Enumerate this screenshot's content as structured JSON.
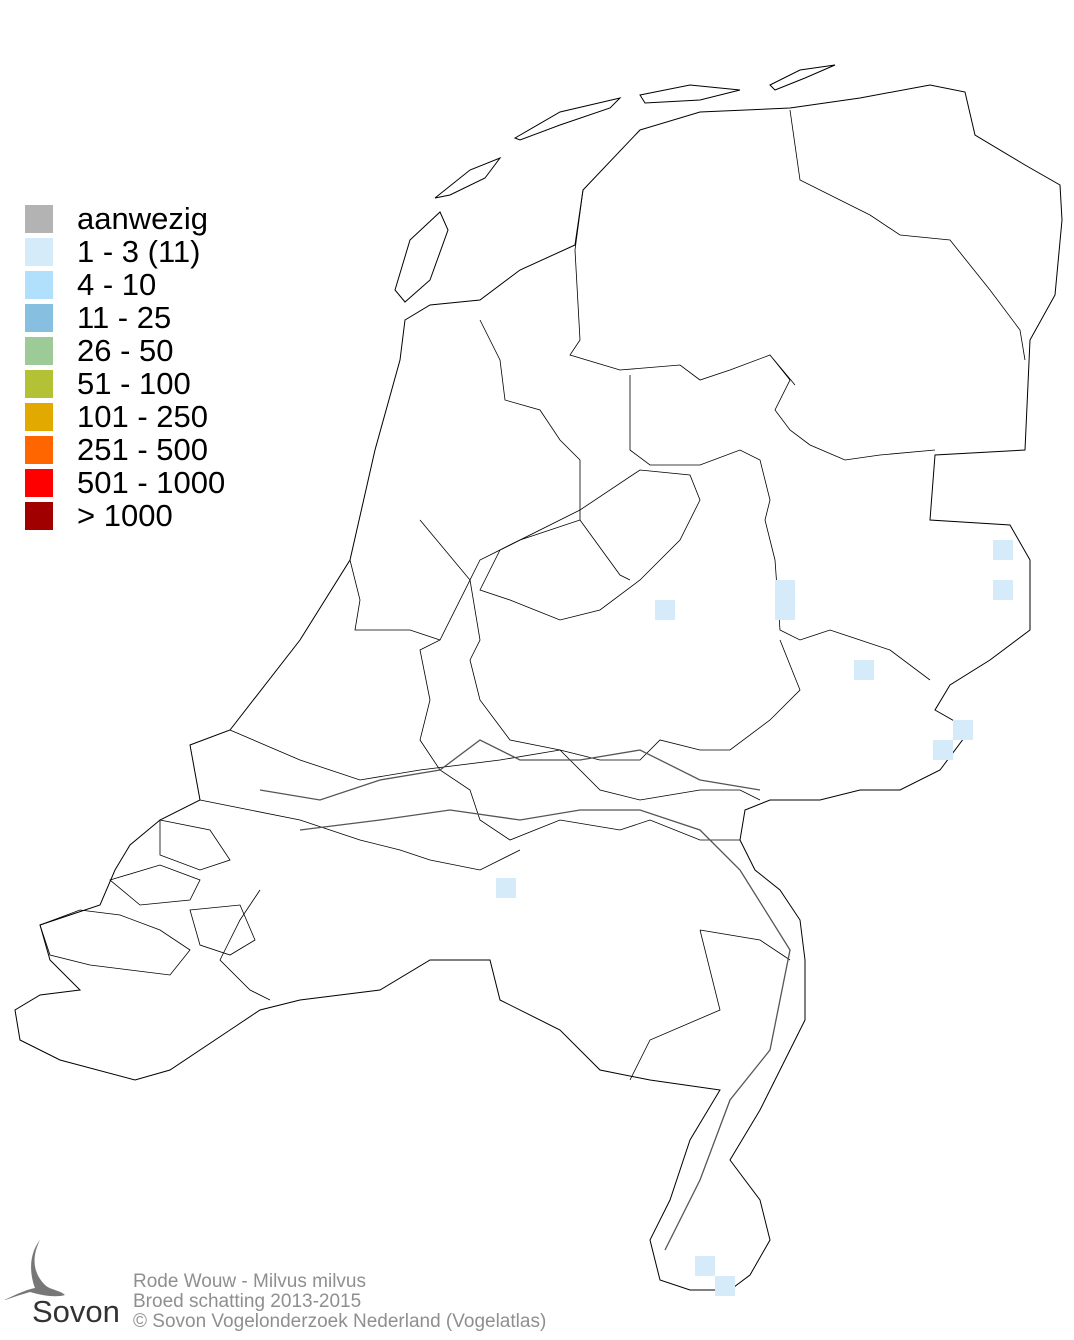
{
  "legend": {
    "items": [
      {
        "label": "aanwezig",
        "color": "#b3b3b3"
      },
      {
        "label": "1 - 3 (11)",
        "color": "#d6ebfa"
      },
      {
        "label": "4 - 10",
        "color": "#b0e0fb"
      },
      {
        "label": "11 - 25",
        "color": "#86bfdf"
      },
      {
        "label": "26 - 50",
        "color": "#9ccb98"
      },
      {
        "label": "51 - 100",
        "color": "#b2c234"
      },
      {
        "label": "101 - 250",
        "color": "#e2aa00"
      },
      {
        "label": "251 - 500",
        "color": "#ff6600"
      },
      {
        "label": "501 - 1000",
        "color": "#ff0000"
      },
      {
        "label": "> 1000",
        "color": "#a00000"
      }
    ]
  },
  "footer": {
    "species": "Rode Wouw - Milvus milvus",
    "subtitle": "Broed schatting 2013-2015",
    "copyright": "© Sovon Vogelonderzoek Nederland (Vogelatlas)"
  },
  "logo": {
    "text": "Sovon"
  }
}
